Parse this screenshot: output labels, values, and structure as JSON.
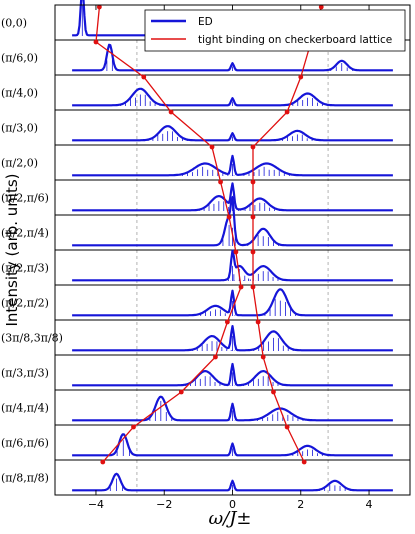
{
  "chart_data": {
    "type": "line",
    "xlabel": "ω/J±",
    "ylabel": "Intensity (arb. units)",
    "xlim": [
      -5.2,
      5.2
    ],
    "xticks": [
      "−4",
      "−2",
      "0",
      "2",
      "4"
    ],
    "xtick_values": [
      -4,
      -2,
      0,
      2,
      4
    ],
    "guide_lines_x": [
      -2.8,
      2.8
    ],
    "legend_placement": "top-right",
    "series": [
      {
        "name": "ED",
        "color": "#1515d8"
      },
      {
        "name": "tight binding on checkerboard lattice",
        "color": "#e01010"
      }
    ],
    "rows": [
      {
        "label": "(0,0)",
        "peaks": [
          [
            -4.4,
            1.0,
            0.12
          ],
          [
            3.3,
            0.45,
            0.12
          ],
          [
            0,
            0.12,
            0.04
          ]
        ],
        "tb": [
          -3.9,
          2.6
        ]
      },
      {
        "label": "(π/6,0)",
        "peaks": [
          [
            -3.6,
            0.55,
            0.2
          ],
          [
            3.2,
            0.2,
            0.4
          ],
          [
            0,
            0.15,
            0.05
          ]
        ],
        "tb": [
          -4.0,
          2.3
        ]
      },
      {
        "label": "(π/4,0)",
        "peaks": [
          [
            -2.7,
            0.35,
            0.6
          ],
          [
            2.2,
            0.25,
            0.6
          ],
          [
            0,
            0.15,
            0.05
          ]
        ],
        "tb": [
          -2.6,
          2.0
        ]
      },
      {
        "label": "(π/3,0)",
        "peaks": [
          [
            -1.9,
            0.3,
            0.6
          ],
          [
            1.9,
            0.2,
            0.6
          ],
          [
            0,
            0.15,
            0.05
          ]
        ],
        "tb": [
          -1.8,
          1.6
        ]
      },
      {
        "label": "(π/2,0)",
        "peaks": [
          [
            -0.8,
            0.25,
            0.8
          ],
          [
            1.0,
            0.25,
            0.8
          ],
          [
            0,
            0.4,
            0.05
          ]
        ],
        "tb": [
          -0.6,
          0.6
        ]
      },
      {
        "label": "(π/2,π/6)",
        "peaks": [
          [
            -0.4,
            0.3,
            0.6
          ],
          [
            0.8,
            0.25,
            0.6
          ],
          [
            0,
            0.5,
            0.05
          ]
        ],
        "tb": [
          -0.35,
          0.6
        ]
      },
      {
        "label": "(π/2,π/4)",
        "peaks": [
          [
            -0.1,
            0.6,
            0.3
          ],
          [
            0.9,
            0.35,
            0.5
          ],
          [
            0,
            0.6,
            0.05
          ]
        ],
        "tb": [
          -0.1,
          0.6
        ]
      },
      {
        "label": "(π/2,π/3)",
        "peaks": [
          [
            0.2,
            0.3,
            0.4
          ],
          [
            0.9,
            0.3,
            0.6
          ],
          [
            0,
            0.5,
            0.05
          ]
        ],
        "tb": [
          0.1,
          0.6
        ]
      },
      {
        "label": "(π/2,π/2)",
        "peaks": [
          [
            1.4,
            0.55,
            0.5
          ],
          [
            -0.5,
            0.2,
            0.6
          ],
          [
            0,
            0.5,
            0.05
          ]
        ],
        "tb": [
          0.25,
          0.6
        ]
      },
      {
        "label": "(3π/8,3π/8)",
        "peaks": [
          [
            1.2,
            0.4,
            0.6
          ],
          [
            -0.6,
            0.3,
            0.6
          ],
          [
            0,
            0.5,
            0.05
          ]
        ],
        "tb": [
          -0.15,
          0.75
        ]
      },
      {
        "label": "(π/3,π/3)",
        "peaks": [
          [
            -0.8,
            0.3,
            0.6
          ],
          [
            0.9,
            0.3,
            0.6
          ],
          [
            0,
            0.45,
            0.05
          ]
        ],
        "tb": [
          -0.5,
          0.9
        ]
      },
      {
        "label": "(π/4,π/4)",
        "peaks": [
          [
            -2.1,
            0.5,
            0.4
          ],
          [
            1.4,
            0.25,
            0.8
          ],
          [
            0,
            0.35,
            0.05
          ]
        ],
        "tb": [
          -1.5,
          1.2
        ]
      },
      {
        "label": "(π/6,π/6)",
        "peaks": [
          [
            -3.2,
            0.45,
            0.3
          ],
          [
            2.2,
            0.2,
            0.6
          ],
          [
            0,
            0.25,
            0.05
          ]
        ],
        "tb": [
          -2.9,
          1.6
        ]
      },
      {
        "label": "(π/8,π/8)",
        "peaks": [
          [
            -3.4,
            0.35,
            0.3
          ],
          [
            3.0,
            0.2,
            0.5
          ],
          [
            0,
            0.2,
            0.05
          ]
        ],
        "tb": [
          -3.8,
          2.1
        ]
      }
    ]
  }
}
